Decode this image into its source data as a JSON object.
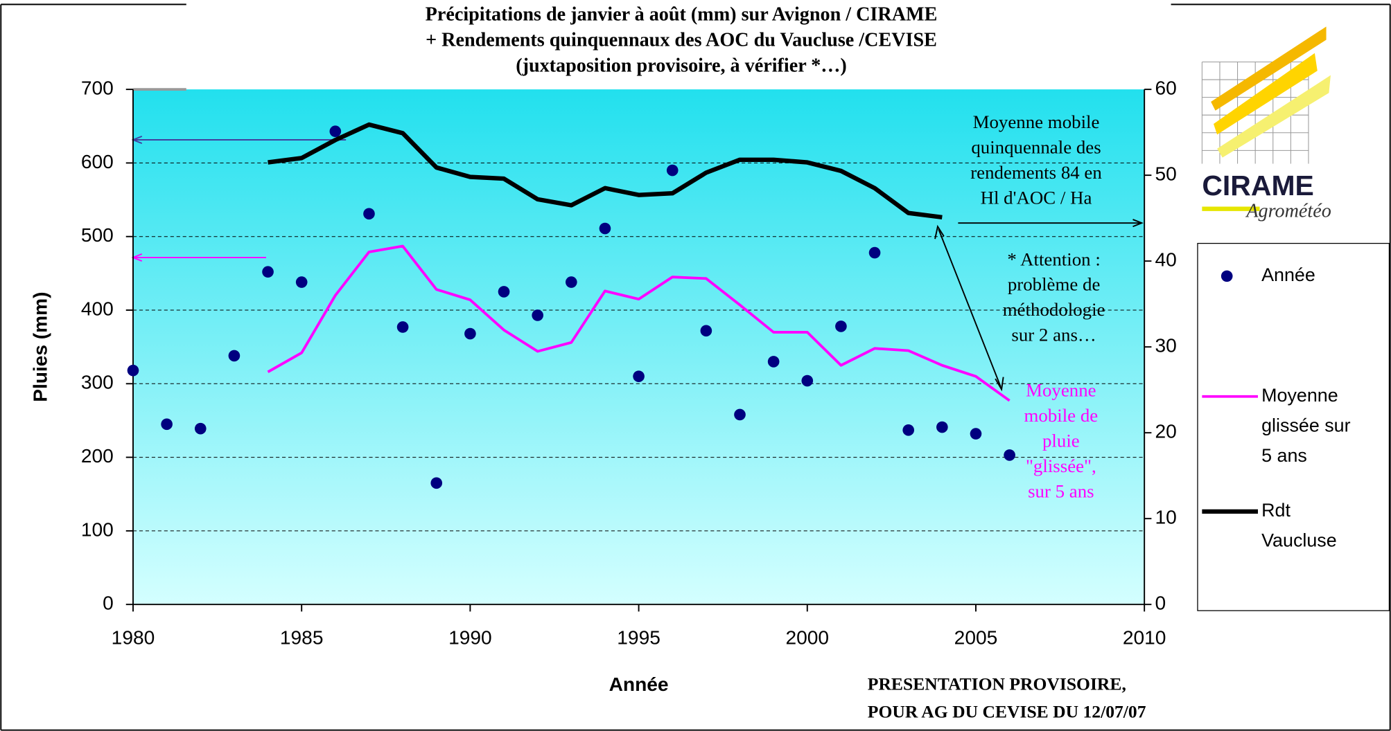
{
  "chart_data": {
    "type": "combo",
    "title": [
      "Précipitations de janvier à août (mm) sur Avignon / CIRAME",
      "+ Rendements quinquennaux des AOC du Vaucluse /CEVISE",
      "(juxtaposition provisoire, à vérifier *…)"
    ],
    "x_label": "Année",
    "y_label": "Pluies (mm)",
    "xlim": [
      1980,
      2010
    ],
    "xticks": [
      1980,
      1985,
      1990,
      1995,
      2000,
      2005,
      2010
    ],
    "ylim": [
      0,
      700
    ],
    "yticks": [
      0,
      100,
      200,
      300,
      400,
      500,
      600,
      700
    ],
    "y2lim": [
      0,
      60
    ],
    "y2ticks": [
      0,
      10,
      20,
      30,
      40,
      50,
      60
    ],
    "grid": true,
    "legend": "right",
    "series": [
      {
        "name": [
          "Année"
        ],
        "type": "scatter",
        "color": "#000080",
        "x": [
          1980,
          1981,
          1982,
          1983,
          1984,
          1985,
          1986,
          1987,
          1988,
          1989,
          1990,
          1991,
          1992,
          1993,
          1994,
          1995,
          1996,
          1997,
          1998,
          1999,
          2000,
          2001,
          2002,
          2003,
          2004,
          2005,
          2006
        ],
        "values": [
          318,
          245,
          239,
          338,
          452,
          438,
          643,
          531,
          377,
          165,
          368,
          425,
          393,
          438,
          511,
          310,
          590,
          372,
          258,
          330,
          304,
          378,
          478,
          237,
          241,
          232,
          203
        ]
      },
      {
        "name": [
          "Moyenne",
          "glissée sur",
          "5 ans"
        ],
        "type": "line",
        "color": "#ff00ff",
        "x": [
          1984,
          1985,
          1986,
          1987,
          1988,
          1989,
          1990,
          1991,
          1992,
          1993,
          1994,
          1995,
          1996,
          1997,
          1998,
          1999,
          2000,
          2001,
          2002,
          2003,
          2004,
          2005,
          2006
        ],
        "values": [
          316,
          342,
          420,
          479,
          487,
          428,
          414,
          373,
          344,
          356,
          426,
          415,
          445,
          443,
          407,
          370,
          370,
          325,
          348,
          345,
          325,
          310,
          277
        ]
      },
      {
        "name": [
          "Rdt",
          "Vaucluse"
        ],
        "type": "line",
        "axis": "y2",
        "color": "#000000",
        "x": [
          1984,
          1985,
          1986,
          1987,
          1988,
          1989,
          1990,
          1991,
          1992,
          1993,
          1994,
          1995,
          1996,
          1997,
          1998,
          1999,
          2000,
          2001,
          2002,
          2003,
          2004
        ],
        "values": [
          51.5,
          52.0,
          54.1,
          55.9,
          54.9,
          50.9,
          49.8,
          49.6,
          47.2,
          46.5,
          48.5,
          47.7,
          47.9,
          50.3,
          51.8,
          51.8,
          51.5,
          50.5,
          48.5,
          45.6,
          45.1
        ]
      }
    ],
    "annotations": [
      [
        "Moyenne mobile",
        "quinquennale des",
        "rendements 84 en",
        "Hl d'AOC / Ha"
      ],
      [
        "* Attention :",
        "problème de",
        "méthodologie",
        "sur 2 ans…"
      ],
      [
        "Moyenne",
        "mobile de",
        "pluie",
        "\"glissée\",",
        "sur 5 ans"
      ]
    ],
    "footer": [
      "PRESENTATION PROVISOIRE,",
      "POUR AG DU CEVISE DU 12/07/07"
    ],
    "logo": [
      "CIRAME",
      "Agrométéo"
    ]
  }
}
